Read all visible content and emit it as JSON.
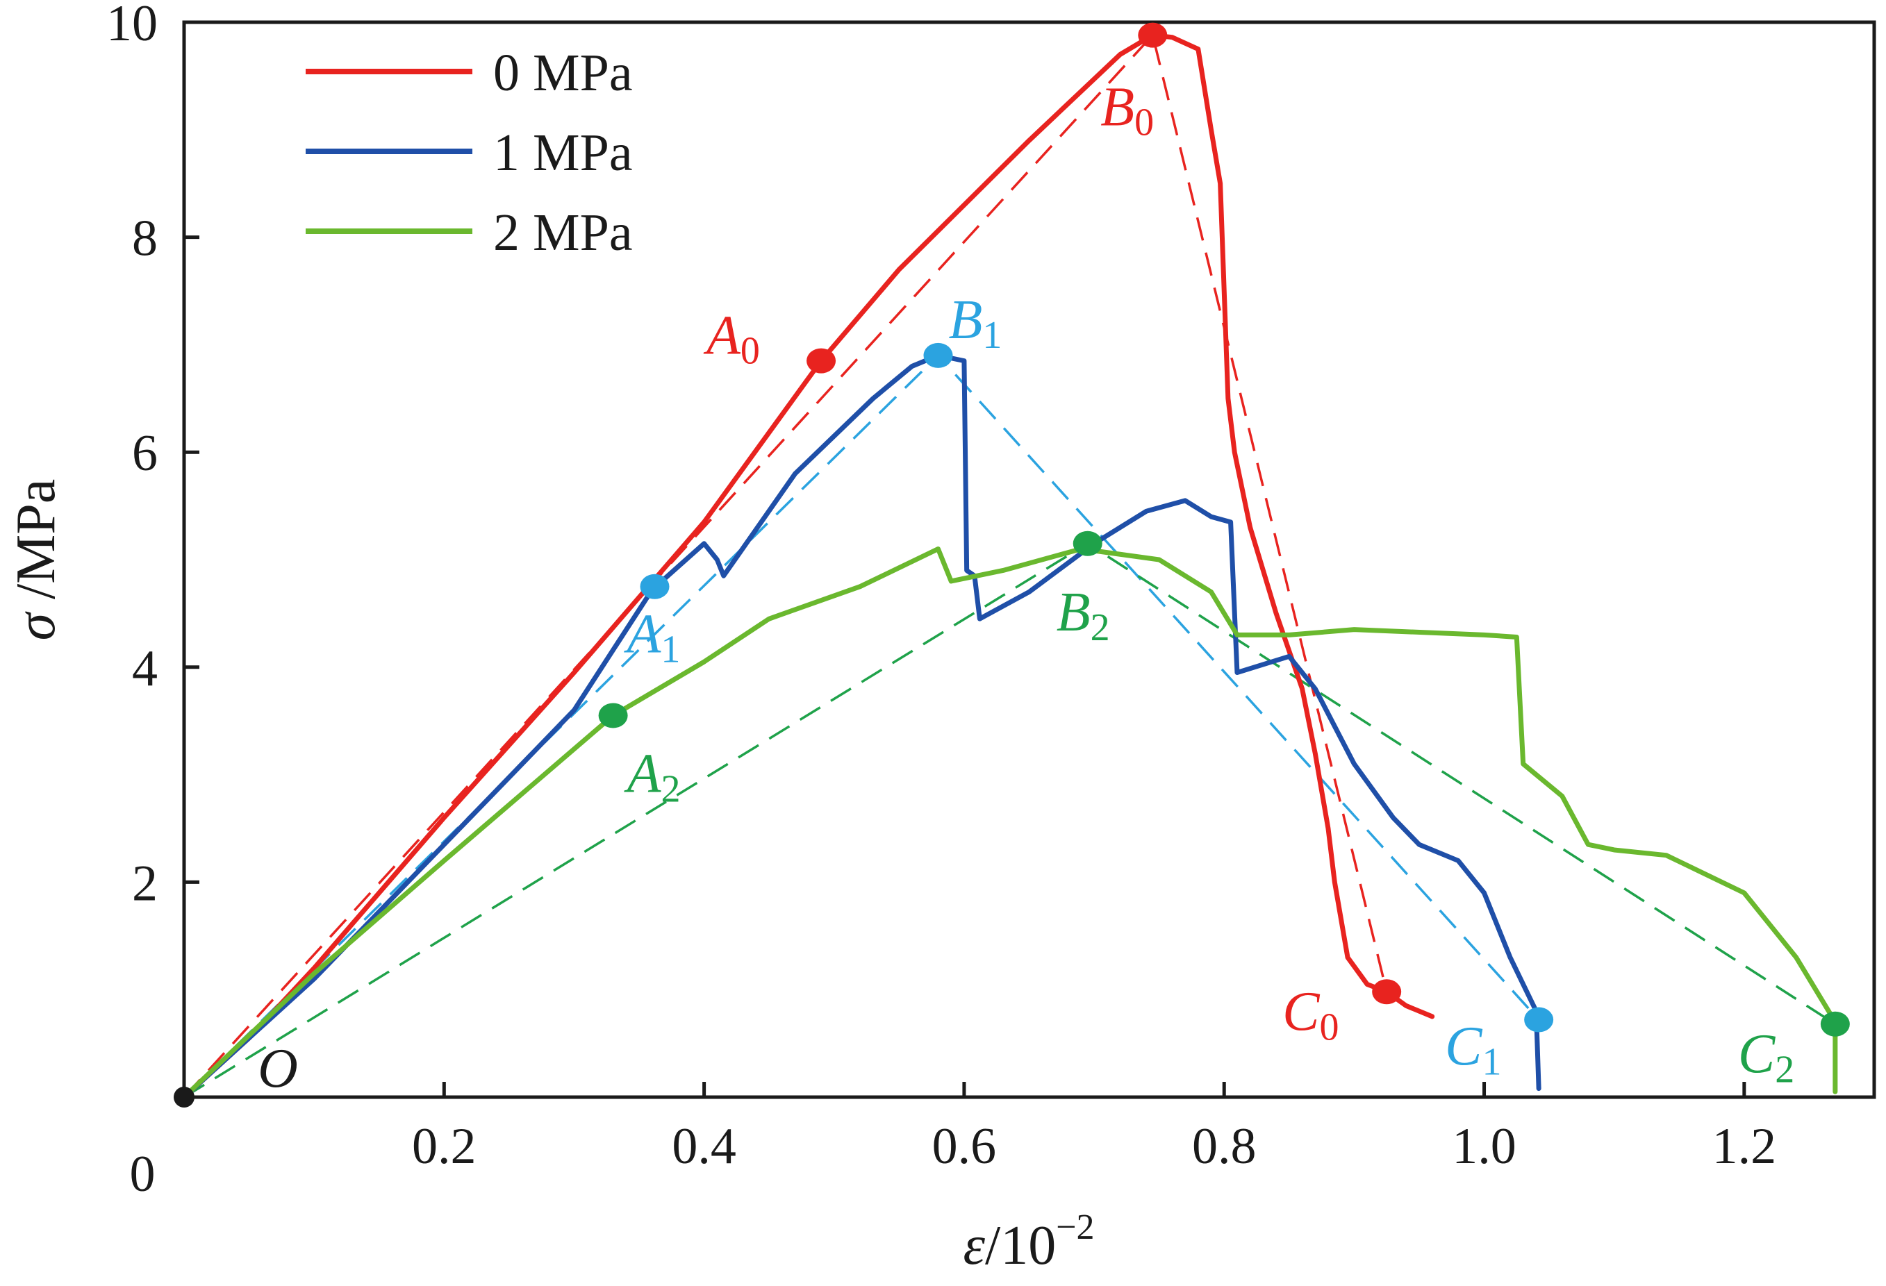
{
  "chart_data": {
    "type": "line",
    "title": "",
    "xlabel": {
      "symbol": "ε",
      "text": "/10",
      "sup": "−2"
    },
    "ylabel": {
      "symbol": "σ",
      "text": " /MPa"
    },
    "xlim": [
      0,
      1.3
    ],
    "ylim": [
      0,
      10
    ],
    "x_ticks": [
      0.2,
      0.4,
      0.6,
      0.8,
      1.0,
      1.2
    ],
    "x_tick_labels": [
      "0.2",
      "0.4",
      "0.6",
      "0.8",
      "1.0",
      "1.2"
    ],
    "y_ticks": [
      2,
      4,
      6,
      8,
      10
    ],
    "y_tick_labels": [
      "2",
      "4",
      "6",
      "8",
      "10"
    ],
    "origin_label": "0",
    "origin_point_label": "O",
    "grid": false,
    "legend_position": "top-left",
    "series": [
      {
        "name": "0 MPa",
        "color": "#e8231f",
        "points": [
          [
            0,
            0
          ],
          [
            0.05,
            0.55
          ],
          [
            0.1,
            1.2
          ],
          [
            0.15,
            1.9
          ],
          [
            0.2,
            2.6
          ],
          [
            0.3,
            3.95
          ],
          [
            0.4,
            5.35
          ],
          [
            0.49,
            6.85
          ],
          [
            0.55,
            7.7
          ],
          [
            0.65,
            8.9
          ],
          [
            0.72,
            9.7
          ],
          [
            0.745,
            9.88
          ],
          [
            0.76,
            9.86
          ],
          [
            0.78,
            9.75
          ],
          [
            0.79,
            9.0
          ],
          [
            0.797,
            8.5
          ],
          [
            0.8,
            7.5
          ],
          [
            0.803,
            6.5
          ],
          [
            0.808,
            6.0
          ],
          [
            0.82,
            5.3
          ],
          [
            0.84,
            4.5
          ],
          [
            0.86,
            3.8
          ],
          [
            0.87,
            3.2
          ],
          [
            0.88,
            2.5
          ],
          [
            0.885,
            2.0
          ],
          [
            0.895,
            1.3
          ],
          [
            0.91,
            1.05
          ],
          [
            0.925,
            0.98
          ],
          [
            0.94,
            0.85
          ],
          [
            0.96,
            0.75
          ]
        ],
        "fit": [
          [
            0,
            0
          ],
          [
            0.745,
            9.88
          ],
          [
            0.925,
            0.98
          ]
        ],
        "key_points": [
          {
            "label": "A",
            "sub": "0",
            "x": 0.49,
            "y": 6.85
          },
          {
            "label": "B",
            "sub": "0",
            "x": 0.745,
            "y": 9.88
          },
          {
            "label": "C",
            "sub": "0",
            "x": 0.925,
            "y": 0.98
          }
        ]
      },
      {
        "name": "1 MPa",
        "color": "#1f4fa8",
        "marker_color": "#2ba3e0",
        "points": [
          [
            0,
            0
          ],
          [
            0.1,
            1.1
          ],
          [
            0.2,
            2.35
          ],
          [
            0.3,
            3.6
          ],
          [
            0.36,
            4.72
          ],
          [
            0.4,
            5.15
          ],
          [
            0.41,
            5.0
          ],
          [
            0.415,
            4.85
          ],
          [
            0.47,
            5.8
          ],
          [
            0.53,
            6.5
          ],
          [
            0.56,
            6.8
          ],
          [
            0.58,
            6.9
          ],
          [
            0.6,
            6.85
          ],
          [
            0.602,
            4.9
          ],
          [
            0.608,
            4.85
          ],
          [
            0.612,
            4.45
          ],
          [
            0.65,
            4.7
          ],
          [
            0.7,
            5.15
          ],
          [
            0.74,
            5.45
          ],
          [
            0.77,
            5.55
          ],
          [
            0.79,
            5.4
          ],
          [
            0.805,
            5.35
          ],
          [
            0.81,
            3.95
          ],
          [
            0.85,
            4.1
          ],
          [
            0.87,
            3.8
          ],
          [
            0.9,
            3.1
          ],
          [
            0.93,
            2.6
          ],
          [
            0.95,
            2.35
          ],
          [
            0.98,
            2.2
          ],
          [
            1.0,
            1.9
          ],
          [
            1.02,
            1.3
          ],
          [
            1.04,
            0.8
          ],
          [
            1.042,
            0.08
          ]
        ],
        "fit": [
          [
            0,
            0
          ],
          [
            0.58,
            6.9
          ],
          [
            1.042,
            0.72
          ]
        ],
        "key_points": [
          {
            "label": "A",
            "sub": "1",
            "x": 0.362,
            "y": 4.75
          },
          {
            "label": "B",
            "sub": "1",
            "x": 0.58,
            "y": 6.9
          },
          {
            "label": "C",
            "sub": "1",
            "x": 1.042,
            "y": 0.72
          }
        ]
      },
      {
        "name": "2 MPa",
        "color": "#6ab82e",
        "marker_color": "#1fa24a",
        "points": [
          [
            0,
            0
          ],
          [
            0.1,
            1.15
          ],
          [
            0.2,
            2.2
          ],
          [
            0.33,
            3.55
          ],
          [
            0.4,
            4.05
          ],
          [
            0.45,
            4.45
          ],
          [
            0.52,
            4.75
          ],
          [
            0.58,
            5.1
          ],
          [
            0.59,
            4.8
          ],
          [
            0.63,
            4.9
          ],
          [
            0.69,
            5.1
          ],
          [
            0.72,
            5.05
          ],
          [
            0.75,
            5.0
          ],
          [
            0.79,
            4.7
          ],
          [
            0.81,
            4.3
          ],
          [
            0.85,
            4.3
          ],
          [
            0.9,
            4.35
          ],
          [
            1.0,
            4.3
          ],
          [
            1.025,
            4.28
          ],
          [
            1.03,
            3.1
          ],
          [
            1.06,
            2.8
          ],
          [
            1.08,
            2.35
          ],
          [
            1.1,
            2.3
          ],
          [
            1.14,
            2.25
          ],
          [
            1.2,
            1.9
          ],
          [
            1.24,
            1.3
          ],
          [
            1.26,
            0.9
          ],
          [
            1.27,
            0.7
          ],
          [
            1.27,
            0.05
          ]
        ],
        "fit": [
          [
            0,
            0
          ],
          [
            0.695,
            5.15
          ],
          [
            1.27,
            0.68
          ]
        ],
        "key_points": [
          {
            "label": "A",
            "sub": "2",
            "x": 0.33,
            "y": 3.55
          },
          {
            "label": "B",
            "sub": "2",
            "x": 0.695,
            "y": 5.15
          },
          {
            "label": "C",
            "sub": "2",
            "x": 1.27,
            "y": 0.68
          }
        ]
      }
    ]
  }
}
